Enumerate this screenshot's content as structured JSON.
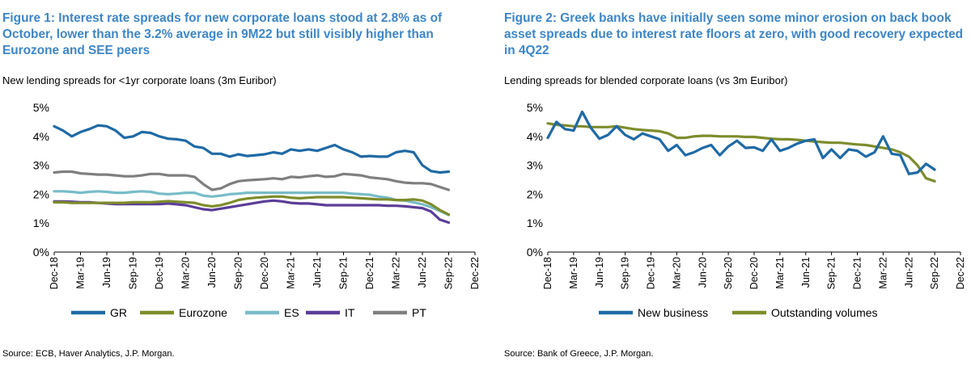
{
  "figure1": {
    "title": "Figure 1: Interest rate spreads for new corporate loans stood at 2.8% as of October, lower than the 3.2% average in 9M22 but still visibly higher than Eurozone and SEE peers",
    "subtitle": "New lending spreads for <1yr corporate loans (3m Euribor)",
    "source": "Source: ECB, Haver Analytics, J.P. Morgan."
  },
  "figure2": {
    "title": "Figure 2: Greek banks have initially seen some minor erosion on back book asset spreads due to interest rate floors at zero, with good recovery expected in 4Q22",
    "subtitle": "Lending spreads for blended corporate loans (vs 3m Euribor)",
    "source": "Source: Bank of Greece, J.P. Morgan."
  },
  "chart_data": [
    {
      "type": "line",
      "title": "New lending spreads for <1yr corporate loans (3m Euribor)",
      "ylim": [
        0,
        5
      ],
      "yticks": [
        "0%",
        "1%",
        "2%",
        "3%",
        "4%",
        "5%"
      ],
      "xlim": [
        0,
        48
      ],
      "xtick_positions": [
        0,
        3,
        6,
        9,
        12,
        15,
        18,
        21,
        24,
        27,
        30,
        33,
        36,
        39,
        42,
        45,
        48
      ],
      "xtick_labels": [
        "Dec-18",
        "Mar-19",
        "Jun-19",
        "Sep-19",
        "Dec-19",
        "Mar-20",
        "Jun-20",
        "Sep-20",
        "Dec-20",
        "Mar-21",
        "Jun-21",
        "Sep-21",
        "Dec-21",
        "Mar-22",
        "Jun-22",
        "Sep-22",
        "Dec-22"
      ],
      "legend": "bottom",
      "series": [
        {
          "name": "GR",
          "color": "#1f6aa5",
          "values": [
            4.35,
            4.2,
            4.0,
            4.15,
            4.25,
            4.38,
            4.35,
            4.2,
            3.95,
            4.0,
            4.15,
            4.12,
            4.0,
            3.92,
            3.9,
            3.85,
            3.65,
            3.6,
            3.4,
            3.4,
            3.3,
            3.38,
            3.32,
            3.35,
            3.38,
            3.45,
            3.4,
            3.55,
            3.5,
            3.55,
            3.5,
            3.6,
            3.7,
            3.55,
            3.45,
            3.3,
            3.32,
            3.3,
            3.3,
            3.45,
            3.5,
            3.45,
            3.0,
            2.8,
            2.75,
            2.78
          ]
        },
        {
          "name": "Eurozone",
          "color": "#7e8c2c",
          "values": [
            1.72,
            1.72,
            1.7,
            1.7,
            1.7,
            1.7,
            1.7,
            1.7,
            1.7,
            1.72,
            1.72,
            1.72,
            1.74,
            1.76,
            1.74,
            1.72,
            1.7,
            1.62,
            1.58,
            1.62,
            1.7,
            1.8,
            1.85,
            1.88,
            1.9,
            1.92,
            1.92,
            1.88,
            1.86,
            1.88,
            1.9,
            1.9,
            1.9,
            1.9,
            1.88,
            1.86,
            1.84,
            1.82,
            1.82,
            1.8,
            1.8,
            1.82,
            1.78,
            1.65,
            1.45,
            1.3
          ]
        },
        {
          "name": "ES",
          "color": "#78bcc8",
          "values": [
            2.1,
            2.1,
            2.08,
            2.05,
            2.08,
            2.1,
            2.08,
            2.05,
            2.05,
            2.08,
            2.1,
            2.08,
            2.02,
            2.0,
            2.02,
            2.05,
            2.05,
            1.95,
            1.92,
            1.95,
            2.0,
            2.02,
            2.05,
            2.05,
            2.05,
            2.05,
            2.05,
            2.05,
            2.05,
            2.05,
            2.05,
            2.05,
            2.05,
            2.05,
            2.02,
            2.0,
            1.98,
            1.92,
            1.88,
            1.8,
            1.78,
            1.72,
            1.65,
            1.55,
            1.42,
            1.28
          ]
        },
        {
          "name": "IT",
          "color": "#5b3d98",
          "values": [
            1.75,
            1.75,
            1.74,
            1.72,
            1.72,
            1.7,
            1.68,
            1.66,
            1.66,
            1.66,
            1.66,
            1.66,
            1.66,
            1.68,
            1.65,
            1.62,
            1.55,
            1.48,
            1.45,
            1.5,
            1.55,
            1.6,
            1.65,
            1.7,
            1.75,
            1.78,
            1.75,
            1.7,
            1.68,
            1.68,
            1.65,
            1.62,
            1.62,
            1.62,
            1.62,
            1.62,
            1.62,
            1.62,
            1.6,
            1.6,
            1.58,
            1.55,
            1.52,
            1.4,
            1.12,
            1.02
          ]
        },
        {
          "name": "PT",
          "color": "#7f7f7f",
          "values": [
            2.75,
            2.78,
            2.78,
            2.72,
            2.7,
            2.68,
            2.68,
            2.65,
            2.62,
            2.62,
            2.65,
            2.7,
            2.7,
            2.65,
            2.65,
            2.65,
            2.6,
            2.35,
            2.15,
            2.2,
            2.35,
            2.45,
            2.48,
            2.5,
            2.52,
            2.55,
            2.52,
            2.6,
            2.58,
            2.62,
            2.65,
            2.6,
            2.62,
            2.7,
            2.68,
            2.65,
            2.58,
            2.55,
            2.52,
            2.45,
            2.4,
            2.38,
            2.38,
            2.35,
            2.25,
            2.15
          ]
        }
      ]
    },
    {
      "type": "line",
      "title": "Lending spreads for blended corporate loans (vs 3m Euribor)",
      "ylim": [
        0,
        5
      ],
      "yticks": [
        "0%",
        "1%",
        "2%",
        "3%",
        "4%",
        "5%"
      ],
      "xlim": [
        0,
        48
      ],
      "xtick_positions": [
        0,
        3,
        6,
        9,
        12,
        15,
        18,
        21,
        24,
        27,
        30,
        33,
        36,
        39,
        42,
        45,
        48
      ],
      "xtick_labels": [
        "Dec-18",
        "Mar-19",
        "Jun-19",
        "Sep-19",
        "Dec-19",
        "Mar-20",
        "Jun-20",
        "Sep-20",
        "Dec-20",
        "Mar-21",
        "Jun-21",
        "Sep-21",
        "Dec-21",
        "Mar-22",
        "Jun-22",
        "Sep-22",
        "Dec-22"
      ],
      "legend": "bottom",
      "series": [
        {
          "name": "New business",
          "color": "#1f6aa5",
          "values": [
            3.95,
            4.5,
            4.25,
            4.2,
            4.85,
            4.3,
            3.92,
            4.05,
            4.35,
            4.05,
            3.9,
            4.1,
            4.0,
            3.9,
            3.5,
            3.7,
            3.35,
            3.45,
            3.6,
            3.7,
            3.35,
            3.65,
            3.85,
            3.6,
            3.62,
            3.5,
            3.9,
            3.5,
            3.6,
            3.75,
            3.85,
            3.9,
            3.25,
            3.55,
            3.25,
            3.55,
            3.5,
            3.3,
            3.45,
            4.0,
            3.4,
            3.35,
            2.7,
            2.75,
            3.05,
            2.85
          ]
        },
        {
          "name": "Outstanding volumes",
          "color": "#7e8c2c",
          "values": [
            4.45,
            4.4,
            4.38,
            4.35,
            4.35,
            4.32,
            4.32,
            4.32,
            4.35,
            4.3,
            4.25,
            4.22,
            4.2,
            4.18,
            4.1,
            3.95,
            3.95,
            4.0,
            4.02,
            4.02,
            4.0,
            4.0,
            4.0,
            3.98,
            3.98,
            3.95,
            3.92,
            3.9,
            3.9,
            3.88,
            3.85,
            3.82,
            3.8,
            3.78,
            3.78,
            3.75,
            3.72,
            3.7,
            3.65,
            3.6,
            3.55,
            3.45,
            3.3,
            3.0,
            2.55,
            2.45
          ]
        }
      ]
    }
  ]
}
